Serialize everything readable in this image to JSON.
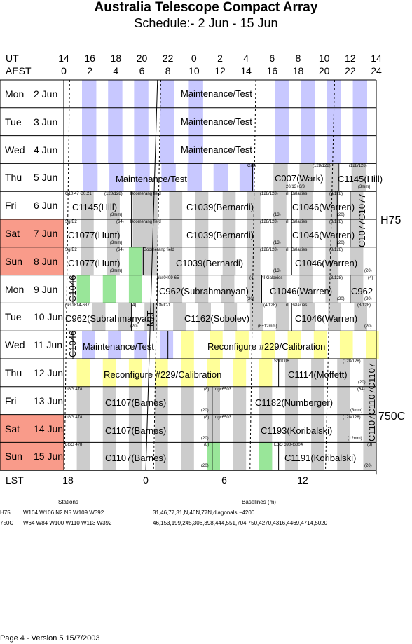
{
  "title": "Australia Telescope Compact Array",
  "subtitle": "Schedule:- 2  Jun - 15 Jun",
  "ut_label": "UT",
  "aest_label": "AEST",
  "lst_label": "LST",
  "ut_hours": [
    "14",
    "16",
    "18",
    "20",
    "22",
    "0",
    "2",
    "4",
    "6",
    "8",
    "10",
    "12",
    "14"
  ],
  "aest_hours": [
    "0",
    "2",
    "4",
    "6",
    "8",
    "10",
    "12",
    "14",
    "16",
    "18",
    "20",
    "22",
    "24"
  ],
  "lst_hours": [
    "18",
    "0",
    "6",
    "12"
  ],
  "days": [
    {
      "dow": "Mon",
      "date": "2  Jun",
      "weekend": false
    },
    {
      "dow": "Tue",
      "date": "3  Jun",
      "weekend": false
    },
    {
      "dow": "Wed",
      "date": "4  Jun",
      "weekend": false
    },
    {
      "dow": "Thu",
      "date": "5  Jun",
      "weekend": false
    },
    {
      "dow": "Fri",
      "date": "6  Jun",
      "weekend": false
    },
    {
      "dow": "Sat",
      "date": "7  Jun",
      "weekend": true
    },
    {
      "dow": "Sun",
      "date": "8  Jun",
      "weekend": true
    },
    {
      "dow": "Mon",
      "date": "9  Jun",
      "weekend": false
    },
    {
      "dow": "Tue",
      "date": "10  Jun",
      "weekend": false
    },
    {
      "dow": "Wed",
      "date": "11  Jun",
      "weekend": false
    },
    {
      "dow": "Thu",
      "date": "12  Jun",
      "weekend": false
    },
    {
      "dow": "Fri",
      "date": "13  Jun",
      "weekend": false
    },
    {
      "dow": "Sat",
      "date": "14  Jun",
      "weekend": true
    },
    {
      "dow": "Sun",
      "date": "15  Jun",
      "weekend": true
    }
  ],
  "configs": [
    {
      "name": "H75"
    },
    {
      "name": "750C"
    }
  ],
  "blocks": {
    "mon2": "Maintenance/Test",
    "tue3": "Maintenance/Test",
    "wed4": "Maintenance/Test",
    "thu5_maint": "Maintenance/Test",
    "thu5_c007": "C007(Wark)",
    "thu5_c007_src": "Cals",
    "thu5_c007_ch": "(128/128)",
    "thu5_c007_sub": "20/13+6/3",
    "thu5_c1145": "C1145(Hill)",
    "thu5_c1145_ch": "(128/128)",
    "thu5_c1145_note": "(3mm)",
    "fri6_c1145": "C1145(Hill)",
    "fri6_c1145_src": "G10.47 G0.21",
    "fri6_c1145_ch": "(128/128)",
    "fri6_c1145_note": "(3mm)",
    "fri6_c1039": "C1039(Bernardi)",
    "fri6_c1039_src": "Boomerang field",
    "fri6_c1039_ch": "(128/128)",
    "fri6_c1039_note": "(13)",
    "fri6_c1046": "C1046(Warren)",
    "fri6_c1046_src": "rII Galaxies",
    "fri6_c1046_ch": "(8/128)",
    "fri6_c1046_note": "(20)",
    "sat7_c1077": "C1077(Hunt)",
    "sat7_c1077_src": "SgrB2",
    "sat7_c1077_ch": "(64)",
    "sat7_c1077_note": "(3mm)",
    "sat7_c1039": "C1039(Bernardi)",
    "sat7_c1039_src": "Boomerang field",
    "sat7_c1039_ch": "(128/128)",
    "sat7_c1039_note": "(13)",
    "sat7_c1046": "C1046(Warren)",
    "sat7_c1046_src": "rII Galaxies",
    "sat7_c1046_ch": "(8/128)",
    "sat7_c1046_note": "(20)",
    "vert_c1077": "C1077C1077",
    "sun8_c1077": "C1077(Hunt)",
    "sun8_c1077_src": "SgrB2",
    "sun8_c1077_ch": "(64)",
    "sun8_c1077_note": "(3mm)",
    "sun8_c1039": "C1039(Bernardi)",
    "sun8_c1039_src": "Boomerang field",
    "sun8_c1039_ch": "(128/128)",
    "sun8_c1039_note": "(13)",
    "sun8_c1046": "C1046(Warren)",
    "sun8_c1046_src": "rII Galaxies",
    "sun8_c1046_ch": "(8/128)",
    "sun8_c1046_note": "(20)",
    "mon9_vert": "C1046",
    "mon9_c962": "C962(Subrahmanyan)",
    "mon9_c962_src": "pks0409-65",
    "mon9_c962_ch": "(4)",
    "mon9_c962_note": "(20)",
    "mon9_c1046": "C1046(Warren)",
    "mon9_c1046_src": "rII Galaxies",
    "mon9_c1046_ch": "(8/128)",
    "mon9_c1046_note": "(20)",
    "mon9_c962b": "C962",
    "mon9_c962b_ch": "(4)",
    "mon9_c962b_note": "(20)",
    "tue10_c962": "C962(Subrahmanyan)",
    "tue10_c962_src": "pks1814-637",
    "tue10_c962_ch": "(4)",
    "tue10_c962_note": "(20)",
    "tue10_mt": "M/T",
    "tue10_c1162": "C1162(Sobolev)",
    "tue10_c1162_src": "OMC-1",
    "tue10_c1162_ch": "(4/128)",
    "tue10_c1162_note": "(6+12mm)",
    "tue10_c1046": "C1046(Warren)",
    "tue10_c1046_src": "rII Galaxies",
    "tue10_c1046_ch": "(8/128)",
    "tue10_c1046_note": "(20)",
    "wed11_vert": "C1046",
    "wed11_maint": "Maintenance/Test",
    "wed11_reconf": "Reconfigure #229/Calibration",
    "thu12_reconf": "Reconfigure #229/Calibration",
    "thu12_c1114": "C1114(Moffett)",
    "thu12_c1114_src": "SN1006",
    "thu12_c1114_ch": "(128/128)",
    "thu12_c1114_note": "(20)",
    "vert_c1107": "C1107C1107C1107",
    "fri13_c1107": "C1107(Barnes)",
    "fri13_c1107_src": "LGG 478",
    "fri13_c1107_ch": "(8)",
    "fri13_c1107_note": "(20)",
    "fri13_c1182": "C1182(Numberger)",
    "fri13_c1182_src": "ngc6503",
    "fri13_c1182_ch": "(64)",
    "fri13_c1182_note": "(3mm)",
    "sat14_c1107": "C1107(Barnes)",
    "sat14_c1107_src": "LGG 478",
    "sat14_c1107_ch": "(8)",
    "sat14_c1107_note": "(20)",
    "sat14_c1193": "C1193(Koribalski)",
    "sat14_c1193_src": "ngc6503",
    "sat14_c1193_ch": "(128/128)",
    "sat14_c1193_note": "(12mm)",
    "sun15_c1107": "C1107(Barnes)",
    "sun15_c1107_src": "LGG 478",
    "sun15_c1107_ch": "(8)",
    "sun15_c1107_note": "(20)",
    "sun15_c1191": "C1191(Koribalski)",
    "sun15_c1191_src": "ESO 390-G004",
    "sun15_c1191_ch": "(8)",
    "sun15_c1191_note": "(20)"
  },
  "footer": {
    "stations_header": "Stations",
    "baselines_header": "Baselines (m)",
    "rows": [
      {
        "config": "H75",
        "stations": "W104  W106  N2  N5  W109  W392",
        "baselines": "31,46,77,31,N,46N,77N,diagonals,~4200"
      },
      {
        "config": "750C",
        "stations": "W64  W84  W100  W110  W113  W392",
        "baselines": "46,153,199,245,306,398,444,551,704,750,4270,4316,4469,4714,5020"
      }
    ],
    "page_info": "Page 4 - Version 5  15/7/2003"
  },
  "colors": {
    "weekend": "#f99b8a",
    "night_stripe": "#c8c8ff",
    "day_stripe": "#cccccc",
    "reconfig_stripe": "#ffff99",
    "green": "#99e699"
  }
}
